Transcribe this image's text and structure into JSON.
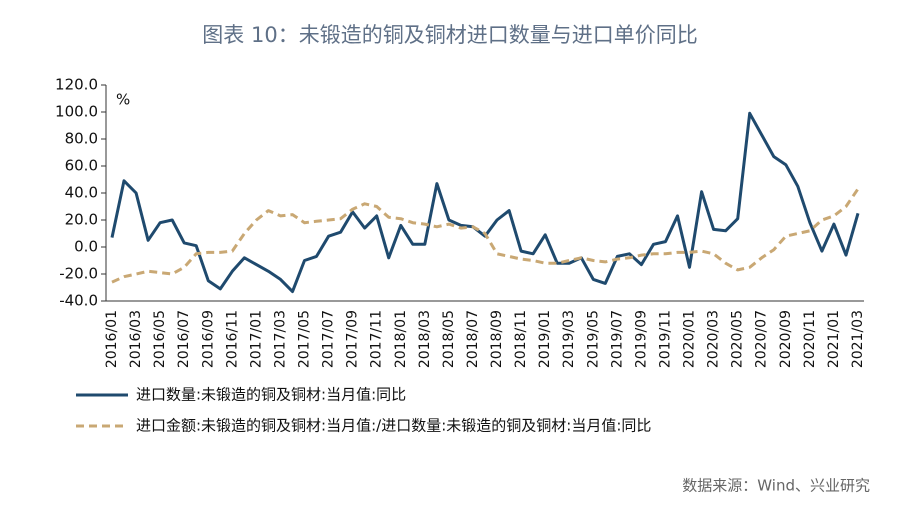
{
  "chart_data": {
    "type": "line",
    "title": "图表 10：未锻造的铜及铜材进口数量与进口单价同比",
    "y_unit": "%",
    "source": "数据来源：Wind、兴业研究",
    "categories": [
      "2016/01",
      null,
      "2016/03",
      null,
      "2016/05",
      null,
      "2016/07",
      null,
      "2016/09",
      null,
      "2016/11",
      null,
      "2017/01",
      null,
      "2017/03",
      null,
      "2017/05",
      null,
      "2017/07",
      null,
      "2017/09",
      null,
      "2017/11",
      null,
      "2018/01",
      null,
      "2018/03",
      null,
      "2018/05",
      null,
      "2018/07",
      null,
      "2018/09",
      null,
      "2018/11",
      null,
      "2019/01",
      null,
      "2019/03",
      null,
      "2019/05",
      null,
      "2019/07",
      null,
      "2019/09",
      null,
      "2019/11",
      null,
      "2020/01",
      null,
      "2020/03",
      null,
      "2020/05",
      null,
      "2020/07",
      null,
      "2020/09",
      null,
      "2020/11",
      null,
      "2021/01",
      null,
      "2021/03"
    ],
    "series": [
      {
        "name": "进口数量:未锻造的铜及铜材:当月值:同比",
        "color": "#1f4a6e",
        "dash": false,
        "values": [
          7,
          49,
          40,
          5,
          18,
          20,
          3,
          1,
          -25,
          -31,
          -18,
          -8,
          -13,
          -18,
          -24,
          -33,
          -10,
          -7,
          8,
          11,
          26,
          14,
          23,
          -8,
          16,
          2,
          2,
          47,
          20,
          16,
          15,
          8,
          20,
          27,
          -3,
          -5,
          9,
          -12,
          -12,
          -8,
          -24,
          -27,
          -7,
          -5,
          -13,
          2,
          4,
          23,
          -15,
          41,
          13,
          12,
          21,
          99,
          83,
          67,
          61,
          45,
          18,
          -3,
          17,
          -6,
          25
        ]
      },
      {
        "name": "进口金额:未锻造的铜及铜材:当月值:/进口数量:未锻造的铜及铜材:当月值:同比",
        "color": "#c9a874",
        "dash": true,
        "values": [
          -26,
          -22,
          -20,
          -18,
          -19,
          -20,
          -15,
          -5,
          -4,
          -4,
          -3,
          10,
          20,
          27,
          23,
          24,
          18,
          19,
          20,
          21,
          28,
          32,
          30,
          22,
          21,
          18,
          17,
          15,
          17,
          14,
          15,
          10,
          -5,
          -7,
          -9,
          -10,
          -12,
          -12,
          -10,
          -8,
          -10,
          -11,
          -9,
          -8,
          -6,
          -5,
          -5,
          -4,
          -4,
          -3,
          -5,
          -12,
          -17,
          -15,
          -8,
          -2,
          8,
          10,
          12,
          20,
          23,
          30,
          43
        ]
      }
    ],
    "ylim": [
      -40,
      120
    ],
    "yticks": [
      {
        "value": -40,
        "label": "-40.0"
      },
      {
        "value": -20,
        "label": "-20.0"
      },
      {
        "value": 0,
        "label": "0.0"
      },
      {
        "value": 20,
        "label": "20.0"
      },
      {
        "value": 40,
        "label": "40.0"
      },
      {
        "value": 60,
        "label": "60.0"
      },
      {
        "value": 80,
        "label": "80.0"
      },
      {
        "value": 100,
        "label": "100.0"
      },
      {
        "value": 120,
        "label": "120.0"
      }
    ],
    "grid": false
  }
}
